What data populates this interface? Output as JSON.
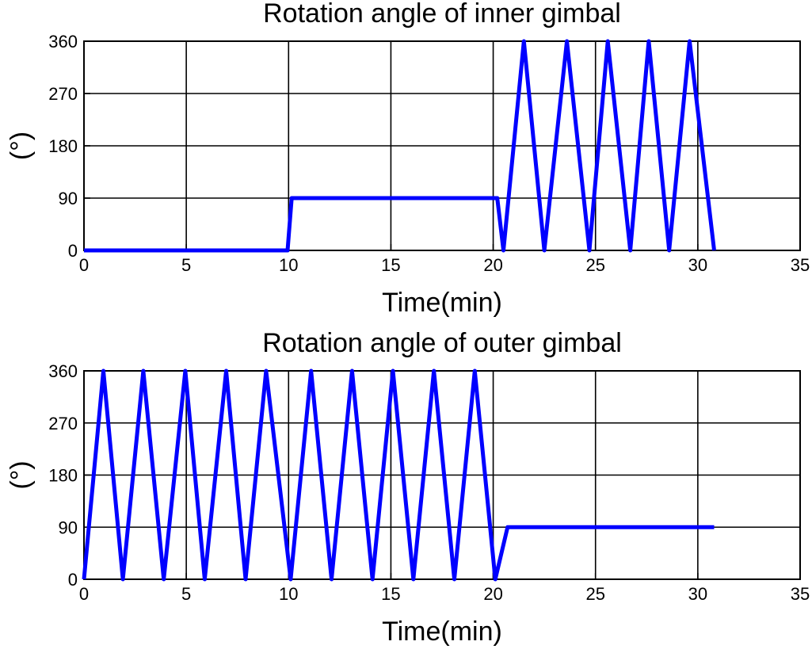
{
  "chart_data": [
    {
      "type": "line",
      "title": "Rotation angle of inner gimbal",
      "xlabel": "Time(min)",
      "ylabel": "(°)",
      "xlim": [
        0,
        35
      ],
      "ylim": [
        0,
        360
      ],
      "x_ticks": [
        0,
        5,
        10,
        15,
        20,
        25,
        30,
        35
      ],
      "y_ticks": [
        0,
        90,
        180,
        270,
        360
      ],
      "grid": true,
      "series": [
        {
          "color": "#0000ff",
          "x": [
            0,
            9.95,
            10.15,
            20.2,
            20.5,
            21.5,
            22.5,
            23.6,
            24.7,
            25.6,
            26.7,
            27.6,
            28.6,
            29.6,
            30.8
          ],
          "y": [
            0,
            0,
            90,
            90,
            0,
            360,
            0,
            360,
            0,
            360,
            0,
            360,
            0,
            360,
            0
          ]
        }
      ]
    },
    {
      "type": "line",
      "title": "Rotation angle of outer gimbal",
      "xlabel": "Time(min)",
      "ylabel": "(°)",
      "xlim": [
        0,
        35
      ],
      "ylim": [
        0,
        360
      ],
      "x_ticks": [
        0,
        5,
        10,
        15,
        20,
        25,
        30,
        35
      ],
      "y_ticks": [
        0,
        90,
        180,
        270,
        360
      ],
      "grid": true,
      "series": [
        {
          "color": "#0000ff",
          "x": [
            0,
            0.95,
            1.9,
            2.9,
            3.9,
            4.95,
            5.9,
            6.95,
            7.9,
            8.9,
            10.1,
            11.1,
            12.1,
            13.1,
            14.1,
            15.1,
            16.1,
            17.1,
            18.1,
            19.1,
            20.1,
            20.7,
            30.8
          ],
          "y": [
            0,
            360,
            0,
            360,
            0,
            360,
            0,
            360,
            0,
            360,
            0,
            360,
            0,
            360,
            0,
            360,
            0,
            360,
            0,
            360,
            0,
            90,
            90
          ]
        }
      ]
    }
  ]
}
